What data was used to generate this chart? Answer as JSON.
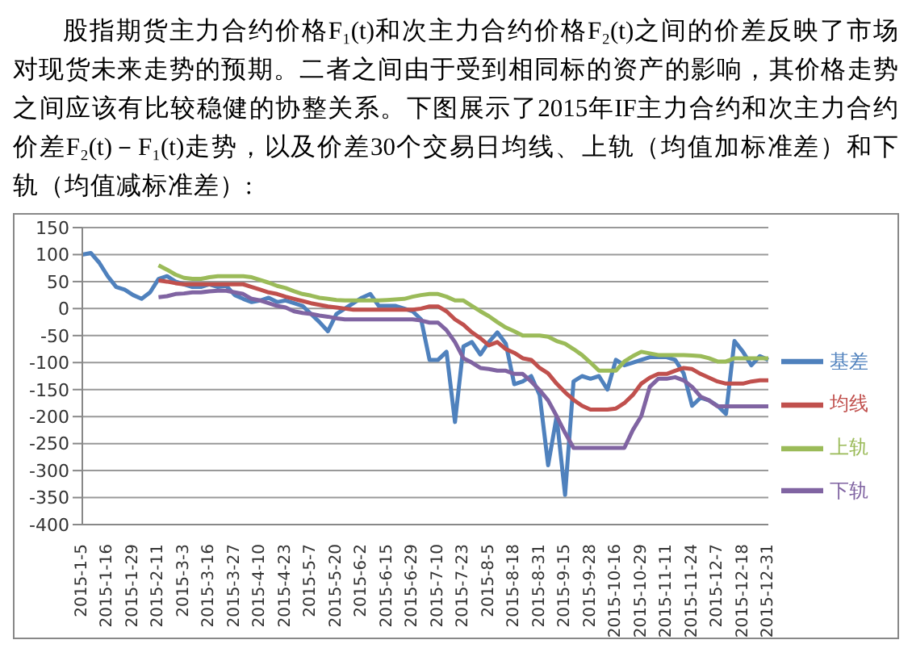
{
  "chart_data": {
    "type": "line",
    "title": "股指期货主力合约价格F₁(t)和次主力合约价格F₂(t)之间的价差反映了市场对现货未来走势的预期。二者之间由于受到相同标的资产的影响，其价格走势之间应该有比较稳健的协整关系。下图展示了2015年IF主力合约和次主力合约价差F₂(t)－F₁(t)走势，以及价差30个交易日均线、上轨（均值加标准差）和下轨（均值减标准差）:",
    "categories": [
      "2015-1-5",
      null,
      null,
      "2015-1-16",
      null,
      null,
      "2015-1-29",
      null,
      null,
      "2015-2-11",
      null,
      null,
      "2015-3-3",
      null,
      null,
      "2015-3-16",
      null,
      null,
      "2015-3-27",
      null,
      null,
      "2015-4-10",
      null,
      null,
      "2015-4-23",
      null,
      null,
      "2015-5-7",
      null,
      null,
      "2015-5-20",
      null,
      null,
      "2015-6-2",
      null,
      null,
      "2015-6-15",
      null,
      null,
      "2015-6-29",
      null,
      null,
      "2015-7-10",
      null,
      null,
      "2015-7-23",
      null,
      null,
      "2015-8-5",
      null,
      null,
      "2015-8-18",
      null,
      null,
      "2015-8-31",
      null,
      null,
      "2015-9-15",
      null,
      null,
      "2015-9-28",
      null,
      null,
      "2015-10-16",
      null,
      null,
      "2015-10-29",
      null,
      null,
      "2015-11-11",
      null,
      null,
      "2015-11-24",
      null,
      null,
      "2015-12-7",
      null,
      null,
      "2015-12-18",
      null,
      null,
      "2015-12-31"
    ],
    "series": [
      {
        "name": "基差",
        "color": "#4f81bd",
        "values": [
          100,
          103,
          85,
          60,
          40,
          35,
          25,
          18,
          30,
          55,
          60,
          50,
          45,
          40,
          40,
          45,
          40,
          42,
          25,
          18,
          12,
          15,
          20,
          12,
          15,
          10,
          5,
          -10,
          -25,
          -42,
          -10,
          0,
          10,
          20,
          27,
          5,
          5,
          5,
          0,
          -5,
          -20,
          -95,
          -95,
          -80,
          -210,
          -70,
          -62,
          -85,
          -62,
          -44,
          -65,
          -140,
          -135,
          -125,
          -160,
          -290,
          -200,
          -345,
          -135,
          -125,
          -130,
          -125,
          -150,
          -95,
          -105,
          -100,
          -95,
          -90,
          -90,
          -90,
          -95,
          -120,
          -180,
          -165,
          -170,
          -180,
          -195,
          -60,
          -80,
          -105,
          -88,
          -95
        ]
      },
      {
        "name": "均线",
        "color": "#c0504d",
        "values": [
          null,
          null,
          null,
          null,
          null,
          null,
          null,
          null,
          null,
          52,
          50,
          47,
          45,
          45,
          45,
          45,
          45,
          45,
          45,
          45,
          40,
          35,
          30,
          27,
          22,
          18,
          14,
          10,
          7,
          4,
          2,
          0,
          -2,
          -2,
          -2,
          -2,
          -2,
          -2,
          -2,
          -2,
          0,
          4,
          4,
          -5,
          -20,
          -30,
          -44,
          -55,
          -68,
          -62,
          -75,
          -82,
          -92,
          -95,
          -110,
          -120,
          -139,
          -155,
          -169,
          -180,
          -187,
          -187,
          -187,
          -185,
          -175,
          -160,
          -139,
          -128,
          -121,
          -121,
          -115,
          -110,
          -112,
          -121,
          -128,
          -135,
          -139,
          -139,
          -139,
          -135,
          -133,
          -133
        ]
      },
      {
        "name": "上轨",
        "color": "#9bbb59",
        "values": [
          null,
          null,
          null,
          null,
          null,
          null,
          null,
          null,
          null,
          80,
          72,
          63,
          57,
          55,
          55,
          58,
          60,
          60,
          60,
          60,
          58,
          53,
          48,
          42,
          38,
          32,
          27,
          24,
          20,
          18,
          16,
          15,
          15,
          15,
          15,
          15,
          16,
          17,
          18,
          22,
          25,
          27,
          27,
          22,
          15,
          15,
          5,
          -5,
          -14,
          -25,
          -35,
          -42,
          -50,
          -50,
          -50,
          -52,
          -60,
          -65,
          -75,
          -86,
          -100,
          -115,
          -115,
          -115,
          -98,
          -88,
          -80,
          -83,
          -86,
          -86,
          -86,
          -86,
          -87,
          -88,
          -92,
          -98,
          -98,
          -92,
          -92,
          -92,
          -92,
          -92
        ]
      },
      {
        "name": "下轨",
        "color": "#8064a2",
        "values": [
          null,
          null,
          null,
          null,
          null,
          null,
          null,
          null,
          null,
          21,
          23,
          27,
          28,
          30,
          30,
          32,
          33,
          33,
          30,
          27,
          18,
          15,
          10,
          5,
          2,
          -5,
          -8,
          -10,
          -13,
          -15,
          -18,
          -20,
          -20,
          -20,
          -20,
          -20,
          -20,
          -20,
          -20,
          -20,
          -22,
          -26,
          -26,
          -40,
          -62,
          -92,
          -100,
          -110,
          -112,
          -115,
          -115,
          -121,
          -121,
          -135,
          -151,
          -170,
          -199,
          -230,
          -258,
          -258,
          -258,
          -258,
          -258,
          -258,
          -258,
          -225,
          -199,
          -145,
          -130,
          -130,
          -127,
          -133,
          -145,
          -163,
          -170,
          -181,
          -181,
          -181,
          -181,
          -181,
          -181,
          -181
        ]
      }
    ],
    "ylim": [
      -400,
      150
    ],
    "yticks": [
      -400,
      -350,
      -300,
      -250,
      -200,
      -150,
      -100,
      -50,
      0,
      50,
      100,
      150
    ],
    "grid": "y",
    "legend": "right",
    "marker": "none",
    "line_style": "solid"
  }
}
